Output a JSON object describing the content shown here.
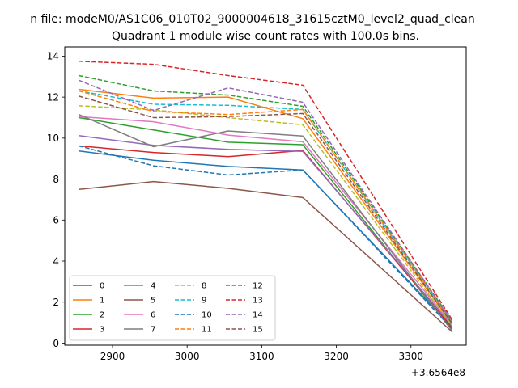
{
  "chart_data": {
    "type": "line",
    "suptitle": "n file: modeM0/AS1C06_010T02_9000004618_31615cztM0_level2_quad_clean",
    "title": "Quadrant 1 module wise count rates with 100.0s bins.",
    "xlabel": "",
    "ylabel": "",
    "x_offset_label": "+3.6564e8",
    "x": [
      2855,
      2955,
      3055,
      3155,
      3355
    ],
    "xlim": [
      2836,
      3374
    ],
    "ylim": [
      -0.1,
      14.45
    ],
    "xticks": [
      2900,
      3000,
      3100,
      3200,
      3300
    ],
    "xtick_labels": [
      "2900",
      "3000",
      "3100",
      "3200",
      "3300"
    ],
    "yticks": [
      0,
      2,
      4,
      6,
      8,
      10,
      12,
      14
    ],
    "ytick_labels": [
      "0",
      "2",
      "4",
      "6",
      "8",
      "10",
      "12",
      "14"
    ],
    "legend_position": "lower-left",
    "legend_columns": 4,
    "series": [
      {
        "name": "0",
        "color": "#1f77b4",
        "dash": "solid",
        "values": [
          9.37,
          8.92,
          8.62,
          8.45,
          0.8
        ]
      },
      {
        "name": "1",
        "color": "#ff7f0e",
        "dash": "solid",
        "values": [
          12.38,
          11.95,
          12.0,
          10.95,
          0.95
        ]
      },
      {
        "name": "2",
        "color": "#2ca02c",
        "dash": "solid",
        "values": [
          11.0,
          10.4,
          9.8,
          9.68,
          0.65
        ]
      },
      {
        "name": "3",
        "color": "#d62728",
        "dash": "solid",
        "values": [
          9.62,
          9.3,
          9.1,
          9.4,
          0.75
        ]
      },
      {
        "name": "4",
        "color": "#9467bd",
        "dash": "solid",
        "values": [
          10.12,
          9.65,
          9.45,
          9.35,
          0.85
        ]
      },
      {
        "name": "5",
        "color": "#8c564b",
        "dash": "solid",
        "values": [
          7.5,
          7.88,
          7.55,
          7.1,
          0.55
        ]
      },
      {
        "name": "6",
        "color": "#e377c2",
        "dash": "solid",
        "values": [
          11.05,
          10.8,
          10.15,
          9.82,
          0.9
        ]
      },
      {
        "name": "7",
        "color": "#7f7f7f",
        "dash": "solid",
        "values": [
          11.15,
          9.58,
          10.35,
          10.1,
          0.6
        ]
      },
      {
        "name": "8",
        "color": "#bcbd22",
        "dash": "dashed",
        "values": [
          11.58,
          11.38,
          11.0,
          10.65,
          0.85
        ]
      },
      {
        "name": "9",
        "color": "#17becf",
        "dash": "dashed",
        "values": [
          12.3,
          11.65,
          11.6,
          11.4,
          1.0
        ]
      },
      {
        "name": "10",
        "color": "#1f77b4",
        "dash": "dashed",
        "values": [
          9.62,
          8.65,
          8.2,
          8.45,
          0.7
        ]
      },
      {
        "name": "11",
        "color": "#ff7f0e",
        "dash": "dashed",
        "values": [
          12.3,
          11.3,
          11.15,
          11.4,
          1.05
        ]
      },
      {
        "name": "12",
        "color": "#2ca02c",
        "dash": "dashed",
        "values": [
          13.05,
          12.3,
          12.1,
          11.55,
          1.1
        ]
      },
      {
        "name": "13",
        "color": "#d62728",
        "dash": "dashed",
        "values": [
          13.75,
          13.6,
          13.05,
          12.58,
          1.15
        ]
      },
      {
        "name": "14",
        "color": "#9467bd",
        "dash": "dashed",
        "values": [
          12.82,
          11.35,
          12.45,
          11.75,
          1.05
        ]
      },
      {
        "name": "15",
        "color": "#8c564b",
        "dash": "dashed",
        "values": [
          12.05,
          11.0,
          11.05,
          11.2,
          0.95
        ]
      }
    ]
  }
}
